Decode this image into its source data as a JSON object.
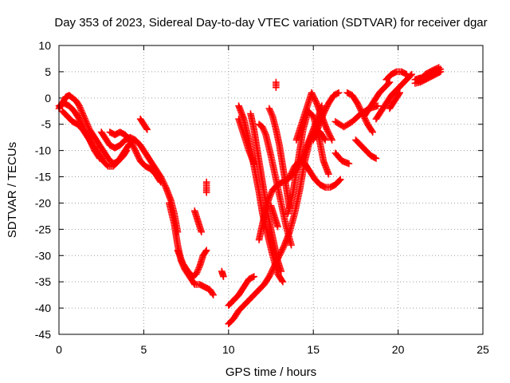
{
  "chart_data": {
    "type": "scatter",
    "title": "Day 353 of 2023, Sidereal Day-to-day VTEC variation (SDTVAR) for receiver dgar",
    "xlabel": "GPS time / hours",
    "ylabel": "SDTVAR / TECUs",
    "xlim": [
      0,
      25
    ],
    "ylim": [
      -45,
      10
    ],
    "xticks": [
      0,
      5,
      10,
      15,
      20,
      25
    ],
    "yticks": [
      10,
      5,
      0,
      -5,
      -10,
      -15,
      -20,
      -25,
      -30,
      -35,
      -40,
      -45
    ],
    "grid": true,
    "marker": "+",
    "marker_color": "#ff0000",
    "series": [
      {
        "points": [
          [
            0.0,
            -2.0
          ],
          [
            0.2,
            -1.0
          ],
          [
            0.4,
            0.2
          ],
          [
            0.6,
            0.5
          ],
          [
            0.8,
            0.0
          ],
          [
            1.0,
            -0.5
          ],
          [
            1.2,
            -1.5
          ],
          [
            1.4,
            -3.0
          ],
          [
            1.6,
            -4.5
          ],
          [
            1.8,
            -6.0
          ],
          [
            2.0,
            -7.0
          ],
          [
            2.3,
            -8.5
          ],
          [
            2.6,
            -10.0
          ],
          [
            2.9,
            -11.5
          ],
          [
            3.2,
            -12.5
          ],
          [
            3.5,
            -12.0
          ],
          [
            3.8,
            -11.0
          ],
          [
            4.0,
            -10.0
          ]
        ]
      },
      {
        "points": [
          [
            0.2,
            -2.5
          ],
          [
            0.5,
            -3.5
          ],
          [
            0.8,
            -4.5
          ],
          [
            1.1,
            -5.0
          ],
          [
            1.4,
            -6.0
          ],
          [
            1.7,
            -7.5
          ],
          [
            2.0,
            -9.0
          ],
          [
            2.3,
            -10.5
          ],
          [
            2.6,
            -12.0
          ],
          [
            2.9,
            -13.0
          ],
          [
            3.2,
            -13.0
          ],
          [
            3.5,
            -12.0
          ],
          [
            3.8,
            -10.5
          ],
          [
            4.1,
            -9.0
          ],
          [
            4.4,
            -8.0
          ]
        ]
      },
      {
        "points": [
          [
            0.0,
            -1.5
          ],
          [
            0.3,
            -1.0
          ],
          [
            0.6,
            -1.5
          ],
          [
            0.9,
            -2.5
          ],
          [
            1.2,
            -4.0
          ],
          [
            1.5,
            -6.0
          ],
          [
            1.8,
            -8.0
          ],
          [
            2.1,
            -10.0
          ],
          [
            2.4,
            -11.5
          ]
        ]
      },
      {
        "points": [
          [
            2.5,
            -6.5
          ],
          [
            2.8,
            -8.0
          ],
          [
            3.0,
            -9.0
          ],
          [
            3.3,
            -9.5
          ],
          [
            3.6,
            -9.0
          ],
          [
            3.9,
            -8.0
          ],
          [
            4.2,
            -7.5
          ],
          [
            4.5,
            -8.0
          ],
          [
            4.8,
            -9.0
          ],
          [
            5.1,
            -10.5
          ],
          [
            5.4,
            -12.0
          ],
          [
            5.7,
            -13.5
          ],
          [
            6.0,
            -15.0
          ],
          [
            6.3,
            -17.0
          ],
          [
            6.6,
            -19.5
          ],
          [
            6.8,
            -22.0
          ],
          [
            7.0,
            -25.5
          ]
        ]
      },
      {
        "points": [
          [
            3.0,
            -6.5
          ],
          [
            3.3,
            -7.0
          ],
          [
            3.6,
            -6.5
          ],
          [
            3.9,
            -7.0
          ],
          [
            4.2,
            -8.0
          ],
          [
            4.5,
            -10.0
          ],
          [
            4.8,
            -12.0
          ],
          [
            5.1,
            -13.0
          ],
          [
            5.4,
            -13.5
          ],
          [
            5.7,
            -14.5
          ],
          [
            6.0,
            -16.0
          ]
        ]
      },
      {
        "points": [
          [
            4.8,
            -4.0
          ],
          [
            5.0,
            -5.0
          ],
          [
            5.2,
            -6.0
          ]
        ]
      },
      {
        "points": [
          [
            6.5,
            -20.0
          ],
          [
            6.8,
            -24.0
          ],
          [
            7.0,
            -28.0
          ],
          [
            7.2,
            -31.0
          ],
          [
            7.4,
            -32.5
          ],
          [
            7.7,
            -34.0
          ],
          [
            8.0,
            -35.5
          ],
          [
            8.3,
            -35.5
          ],
          [
            8.6,
            -36.0
          ],
          [
            8.9,
            -36.5
          ],
          [
            9.1,
            -37.5
          ]
        ]
      },
      {
        "points": [
          [
            7.0,
            -29.0
          ],
          [
            7.3,
            -31.5
          ],
          [
            7.6,
            -33.0
          ],
          [
            7.9,
            -34.0
          ],
          [
            8.1,
            -33.5
          ],
          [
            8.3,
            -32.0
          ],
          [
            8.5,
            -30.0
          ],
          [
            8.7,
            -29.0
          ]
        ]
      },
      {
        "points": [
          [
            8.0,
            -21.5
          ],
          [
            8.2,
            -23.5
          ],
          [
            8.4,
            -25.5
          ]
        ]
      },
      {
        "points": [
          [
            8.7,
            -16.0
          ],
          [
            8.7,
            -17.0
          ],
          [
            8.7,
            -18.0
          ]
        ]
      },
      {
        "points": [
          [
            9.6,
            -33.0
          ],
          [
            9.7,
            -34.0
          ]
        ]
      },
      {
        "points": [
          [
            10.0,
            -39.5
          ],
          [
            10.3,
            -38.5
          ],
          [
            10.6,
            -37.5
          ],
          [
            10.9,
            -36.0
          ],
          [
            11.2,
            -34.5
          ],
          [
            11.5,
            -34.0
          ]
        ]
      },
      {
        "points": [
          [
            10.0,
            -43.0
          ],
          [
            10.3,
            -42.0
          ],
          [
            10.6,
            -40.5
          ],
          [
            10.9,
            -39.5
          ],
          [
            11.2,
            -38.5
          ],
          [
            11.5,
            -37.5
          ],
          [
            11.8,
            -36.5
          ],
          [
            12.1,
            -35.5
          ],
          [
            12.4,
            -34.0
          ],
          [
            12.7,
            -32.0
          ],
          [
            13.0,
            -30.0
          ],
          [
            13.3,
            -28.0
          ],
          [
            13.6,
            -25.5
          ],
          [
            13.9,
            -22.0
          ],
          [
            14.2,
            -17.5
          ],
          [
            14.5,
            -12.0
          ],
          [
            14.8,
            -8.0
          ],
          [
            15.1,
            -6.0
          ],
          [
            15.4,
            -6.5
          ],
          [
            15.7,
            -8.0
          ]
        ]
      },
      {
        "points": [
          [
            10.6,
            -1.5
          ],
          [
            10.9,
            -4.0
          ],
          [
            11.2,
            -8.0
          ],
          [
            11.5,
            -13.0
          ],
          [
            11.8,
            -18.0
          ],
          [
            12.0,
            -22.0
          ],
          [
            12.3,
            -26.0
          ],
          [
            12.6,
            -30.0
          ],
          [
            12.9,
            -33.5
          ],
          [
            13.2,
            -35.0
          ]
        ]
      },
      {
        "points": [
          [
            11.3,
            -3.0
          ],
          [
            11.5,
            -6.0
          ],
          [
            11.7,
            -10.0
          ],
          [
            11.9,
            -14.0
          ],
          [
            12.1,
            -18.0
          ],
          [
            12.3,
            -22.0
          ],
          [
            12.5,
            -25.0
          ],
          [
            12.7,
            -28.0
          ],
          [
            12.9,
            -31.0
          ],
          [
            13.1,
            -33.0
          ]
        ]
      },
      {
        "points": [
          [
            11.8,
            -27.0
          ],
          [
            12.0,
            -24.0
          ],
          [
            12.2,
            -21.0
          ],
          [
            12.4,
            -19.0
          ],
          [
            12.6,
            -17.5
          ],
          [
            12.9,
            -16.5
          ],
          [
            13.2,
            -16.0
          ],
          [
            13.5,
            -15.5
          ],
          [
            13.8,
            -14.5
          ],
          [
            14.1,
            -13.0
          ],
          [
            14.4,
            -11.0
          ],
          [
            14.7,
            -8.5
          ],
          [
            15.0,
            -6.0
          ],
          [
            15.3,
            -3.5
          ],
          [
            15.5,
            -1.5
          ]
        ]
      },
      {
        "points": [
          [
            10.6,
            -4.0
          ],
          [
            10.9,
            -7.0
          ],
          [
            11.2,
            -10.0
          ],
          [
            11.5,
            -12.5
          ]
        ]
      },
      {
        "points": [
          [
            11.8,
            -5.0
          ],
          [
            12.0,
            -5.5
          ],
          [
            12.2,
            -7.0
          ],
          [
            12.5,
            -11.0
          ],
          [
            12.8,
            -15.5
          ],
          [
            13.1,
            -20.0
          ],
          [
            13.4,
            -24.5
          ],
          [
            13.7,
            -28.0
          ]
        ]
      },
      {
        "points": [
          [
            12.4,
            -2.0
          ],
          [
            12.6,
            -3.5
          ],
          [
            12.8,
            -6.0
          ],
          [
            13.0,
            -9.0
          ],
          [
            13.2,
            -13.0
          ],
          [
            13.4,
            -17.0
          ],
          [
            13.6,
            -21.0
          ]
        ]
      },
      {
        "points": [
          [
            12.5,
            -20.5
          ],
          [
            12.7,
            -22.5
          ],
          [
            12.9,
            -24.5
          ]
        ]
      },
      {
        "points": [
          [
            12.8,
            3.0
          ],
          [
            12.8,
            2.0
          ]
        ]
      },
      {
        "points": [
          [
            13.5,
            -22.0
          ],
          [
            13.8,
            -18.0
          ],
          [
            14.1,
            -12.0
          ],
          [
            14.4,
            -6.0
          ],
          [
            14.7,
            -2.5
          ],
          [
            15.0,
            -3.5
          ],
          [
            15.3,
            -7.0
          ],
          [
            15.6,
            -12.0
          ],
          [
            15.9,
            -14.5
          ]
        ]
      },
      {
        "points": [
          [
            13.6,
            -15.0
          ],
          [
            13.9,
            -13.0
          ],
          [
            14.2,
            -12.0
          ],
          [
            14.5,
            -12.5
          ],
          [
            14.8,
            -14.0
          ],
          [
            15.1,
            -15.5
          ],
          [
            15.4,
            -16.5
          ],
          [
            15.7,
            -17.0
          ],
          [
            16.0,
            -17.0
          ],
          [
            16.3,
            -16.5
          ],
          [
            16.6,
            -15.5
          ]
        ]
      },
      {
        "points": [
          [
            14.0,
            -8.0
          ],
          [
            14.3,
            -5.0
          ],
          [
            14.6,
            -2.0
          ],
          [
            14.9,
            1.0
          ],
          [
            15.2,
            -1.0
          ],
          [
            15.5,
            -3.5
          ],
          [
            15.8,
            -6.0
          ],
          [
            16.1,
            -8.0
          ]
        ]
      },
      {
        "points": [
          [
            15.0,
            -8.0
          ],
          [
            15.3,
            -5.5
          ],
          [
            15.6,
            -3.0
          ],
          [
            15.9,
            -1.0
          ],
          [
            16.2,
            0.5
          ],
          [
            16.5,
            1.0
          ]
        ]
      },
      {
        "points": [
          [
            16.3,
            -4.5
          ],
          [
            16.8,
            -5.5
          ],
          [
            17.3,
            -4.5
          ],
          [
            17.8,
            -3.0
          ],
          [
            18.3,
            -2.0
          ],
          [
            18.8,
            -1.5
          ]
        ]
      },
      {
        "points": [
          [
            16.3,
            -10.5
          ],
          [
            16.7,
            -12.0
          ],
          [
            17.1,
            -12.5
          ]
        ]
      },
      {
        "points": [
          [
            17.0,
            1.0
          ],
          [
            17.3,
            0.5
          ],
          [
            17.6,
            -1.0
          ],
          [
            17.9,
            -3.0
          ],
          [
            18.2,
            -5.0
          ],
          [
            18.5,
            -6.5
          ]
        ]
      },
      {
        "points": [
          [
            17.5,
            -8.0
          ],
          [
            17.8,
            -9.0
          ],
          [
            18.1,
            -10.0
          ],
          [
            18.4,
            -11.0
          ],
          [
            18.7,
            -11.5
          ]
        ]
      },
      {
        "points": [
          [
            18.0,
            -3.5
          ],
          [
            18.3,
            -2.0
          ],
          [
            18.6,
            -0.5
          ],
          [
            18.9,
            1.0
          ],
          [
            19.2,
            2.0
          ],
          [
            19.5,
            3.0
          ]
        ]
      },
      {
        "points": [
          [
            18.7,
            -4.0
          ],
          [
            19.0,
            -2.5
          ],
          [
            19.3,
            -1.0
          ],
          [
            19.6,
            0.5
          ],
          [
            19.9,
            1.5
          ],
          [
            20.2,
            2.5
          ],
          [
            20.5,
            3.5
          ],
          [
            20.8,
            4.5
          ]
        ]
      },
      {
        "points": [
          [
            19.3,
            3.5
          ],
          [
            19.6,
            4.5
          ],
          [
            19.9,
            5.0
          ],
          [
            20.2,
            5.0
          ],
          [
            20.5,
            4.5
          ]
        ]
      },
      {
        "points": [
          [
            19.5,
            -2.0
          ],
          [
            19.8,
            -0.5
          ],
          [
            20.1,
            1.0
          ]
        ]
      },
      {
        "points": [
          [
            21.0,
            3.5
          ],
          [
            21.3,
            3.8
          ],
          [
            21.6,
            4.0
          ],
          [
            21.9,
            4.5
          ],
          [
            22.2,
            5.0
          ],
          [
            22.5,
            5.5
          ]
        ]
      },
      {
        "points": [
          [
            21.0,
            2.8
          ],
          [
            21.3,
            3.0
          ],
          [
            21.6,
            3.5
          ],
          [
            21.9,
            4.0
          ],
          [
            22.2,
            4.5
          ],
          [
            22.5,
            5.0
          ]
        ]
      },
      {
        "points": [
          [
            21.2,
            3.0
          ],
          [
            21.6,
            4.5
          ],
          [
            22.0,
            5.2
          ],
          [
            22.4,
            5.8
          ]
        ]
      }
    ]
  }
}
